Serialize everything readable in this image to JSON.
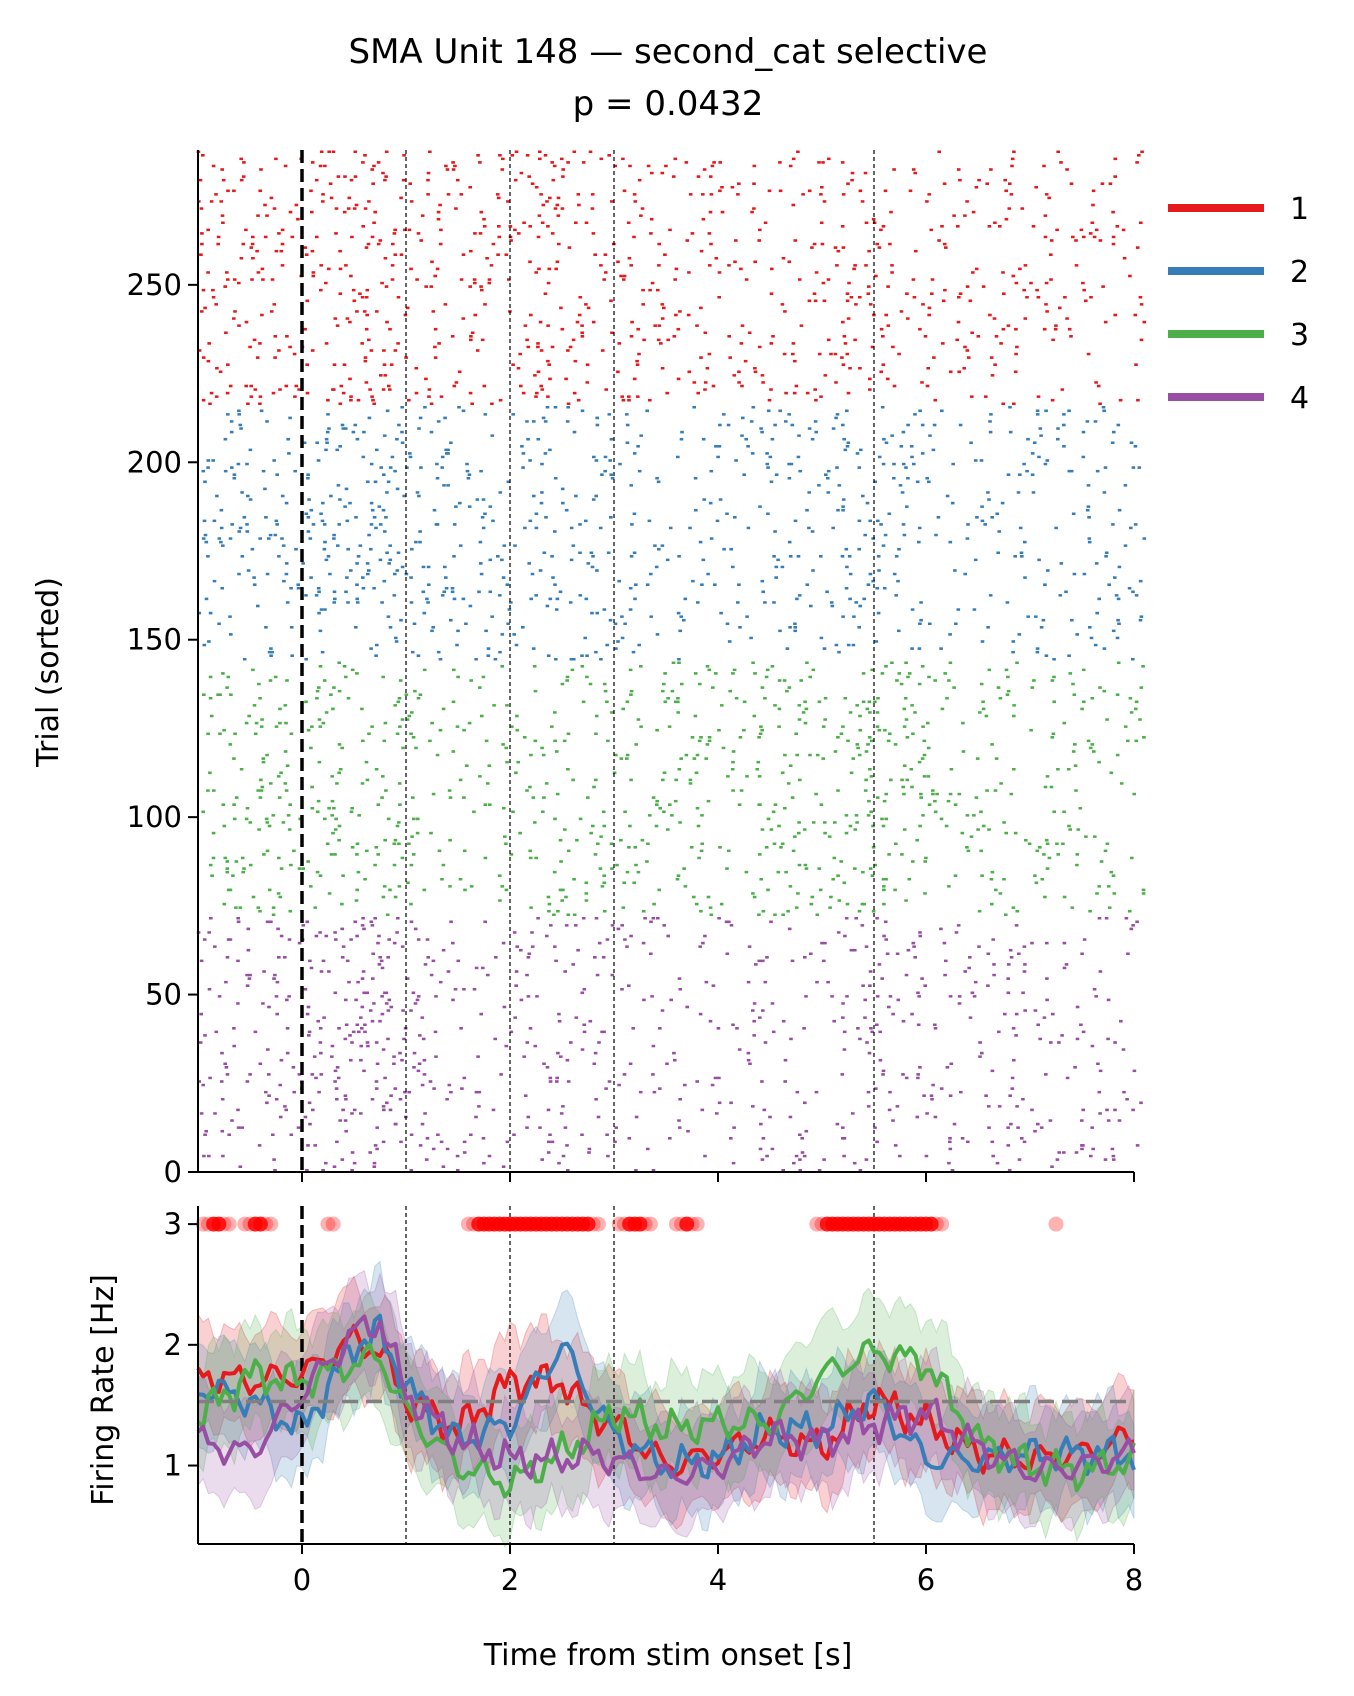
{
  "chart_data": [
    {
      "type": "scatter",
      "panel": "raster",
      "title": "SMA Unit 148 — second_cat selective",
      "subtitle": "p = 0.0432",
      "xlabel": "",
      "ylabel": "Trial (sorted)",
      "xlim": [
        -1,
        8
      ],
      "ylim": [
        0,
        288
      ],
      "yticks": [
        0,
        50,
        100,
        150,
        200,
        250
      ],
      "markers": {
        "stim_onset": 0,
        "events": [
          1,
          2,
          3,
          5.5
        ]
      },
      "groups": [
        {
          "name": "1",
          "color": "#e41a1c",
          "trial_range": [
            216,
            288
          ]
        },
        {
          "name": "2",
          "color": "#377eb8",
          "trial_range": [
            144,
            216
          ]
        },
        {
          "name": "3",
          "color": "#4daf4a",
          "trial_range": [
            72,
            144
          ]
        },
        {
          "name": "4",
          "color": "#984ea3",
          "trial_range": [
            0,
            72
          ]
        }
      ]
    },
    {
      "type": "line",
      "panel": "psth",
      "xlabel": "Time from stim onset [s]",
      "ylabel": "Firing Rate [Hz]",
      "xlim": [
        -1,
        8
      ],
      "ylim": [
        0.35,
        3.15
      ],
      "xticks": [
        0,
        2,
        4,
        6,
        8
      ],
      "yticks": [
        1,
        2,
        3
      ],
      "baseline": 1.53,
      "x": [
        -1,
        -0.5,
        0,
        0.5,
        0.75,
        1,
        1.5,
        2,
        2.5,
        2.75,
        3,
        3.5,
        4,
        4.5,
        5,
        5.5,
        6,
        6.5,
        7,
        7.5,
        8
      ],
      "series": [
        {
          "name": "1",
          "color": "#e41a1c",
          "values": [
            1.75,
            1.7,
            1.75,
            2.05,
            1.95,
            1.55,
            1.3,
            1.7,
            1.7,
            1.45,
            1.35,
            1.0,
            1.1,
            1.25,
            1.15,
            1.55,
            1.35,
            1.1,
            1.05,
            1.1,
            1.25
          ]
        },
        {
          "name": "2",
          "color": "#377eb8",
          "values": [
            1.65,
            1.55,
            1.3,
            2.0,
            2.1,
            1.65,
            1.2,
            1.35,
            2.0,
            1.6,
            1.25,
            1.0,
            1.05,
            1.3,
            1.3,
            1.55,
            1.05,
            1.05,
            1.1,
            1.1,
            1.1
          ]
        },
        {
          "name": "3",
          "color": "#4daf4a",
          "values": [
            1.4,
            1.75,
            1.7,
            1.85,
            1.9,
            1.45,
            1.0,
            0.85,
            1.1,
            1.25,
            1.45,
            1.3,
            1.35,
            1.35,
            1.75,
            1.95,
            1.85,
            1.2,
            1.0,
            0.95,
            1.05
          ]
        },
        {
          "name": "4",
          "color": "#984ea3",
          "values": [
            1.2,
            1.1,
            1.6,
            2.1,
            2.2,
            1.6,
            1.2,
            1.05,
            1.05,
            1.1,
            1.05,
            0.9,
            1.0,
            1.25,
            1.2,
            1.35,
            1.45,
            1.15,
            0.95,
            1.0,
            1.1
          ]
        }
      ],
      "significance": {
        "y": 3,
        "color": "#ff0000",
        "intervals": [
          [
            -0.95,
            -0.7
          ],
          [
            -0.55,
            -0.3
          ],
          [
            0.25,
            0.3
          ],
          [
            1.6,
            2.85
          ],
          [
            3.05,
            3.35
          ],
          [
            3.6,
            3.8
          ],
          [
            4.95,
            6.15
          ]
        ]
      }
    }
  ]
}
